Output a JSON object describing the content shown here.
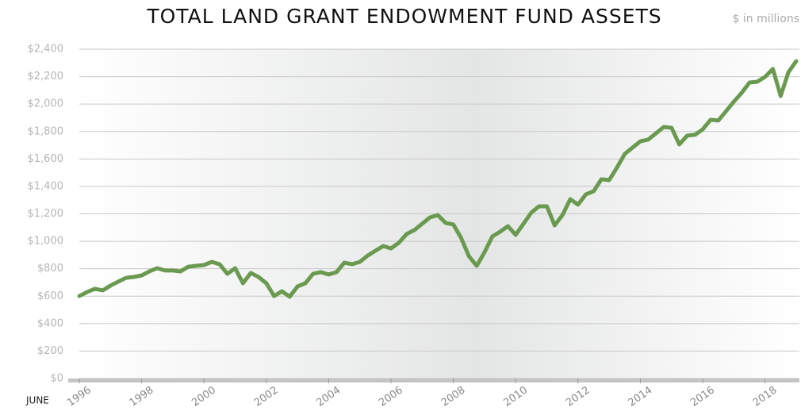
{
  "chart_data": {
    "type": "line",
    "title": "TOTAL LAND GRANT ENDOWMENT FUND ASSETS",
    "subtitle": "$ in millions",
    "x_note": "JUNE",
    "x": [
      1996,
      1996.25,
      1996.5,
      1996.75,
      1997,
      1997.25,
      1997.5,
      1997.75,
      1998,
      1998.25,
      1998.5,
      1998.75,
      1999,
      1999.25,
      1999.5,
      1999.75,
      2000,
      2000.25,
      2000.5,
      2000.75,
      2001,
      2001.25,
      2001.5,
      2001.75,
      2002,
      2002.25,
      2002.5,
      2002.75,
      2003,
      2003.25,
      2003.5,
      2003.75,
      2004,
      2004.25,
      2004.5,
      2004.75,
      2005,
      2005.25,
      2005.5,
      2005.75,
      2006,
      2006.25,
      2006.5,
      2006.75,
      2007,
      2007.25,
      2007.5,
      2007.75,
      2008,
      2008.25,
      2008.5,
      2008.75,
      2009,
      2009.25,
      2009.5,
      2009.75,
      2010,
      2010.25,
      2010.5,
      2010.75,
      2011,
      2011.25,
      2011.5,
      2011.75,
      2012,
      2012.25,
      2012.5,
      2012.75,
      2013,
      2013.25,
      2013.5,
      2013.75,
      2014,
      2014.25,
      2014.5,
      2014.75,
      2015,
      2015.25,
      2015.5,
      2015.75,
      2016,
      2016.25,
      2016.5,
      2016.75,
      2017,
      2017.25,
      2017.5,
      2017.75,
      2018,
      2018.25,
      2018.5,
      2018.75,
      2019
    ],
    "series": [
      {
        "name": "Fund assets",
        "color": "#6a9a50",
        "values": [
          601,
          630,
          654,
          642,
          677,
          706,
          734,
          740,
          751,
          781,
          804,
          787,
          787,
          781,
          815,
          821,
          827,
          850,
          833,
          763,
          804,
          694,
          769,
          740,
          694,
          601,
          636,
          596,
          671,
          694,
          763,
          775,
          758,
          775,
          844,
          833,
          850,
          896,
          931,
          966,
          948,
          989,
          1053,
          1082,
          1128,
          1174,
          1191,
          1134,
          1122,
          1024,
          891,
          821,
          920,
          1035,
          1070,
          1110,
          1047,
          1128,
          1209,
          1255,
          1255,
          1116,
          1191,
          1307,
          1267,
          1342,
          1365,
          1452,
          1446,
          1538,
          1637,
          1683,
          1729,
          1741,
          1787,
          1833,
          1827,
          1706,
          1770,
          1776,
          1816,
          1885,
          1880,
          1949,
          2018,
          2082,
          2157,
          2163,
          2198,
          2256,
          2059,
          2233,
          2313
        ]
      }
    ],
    "xlim": [
      1996,
      2019
    ],
    "xticks": [
      1996,
      1998,
      2000,
      2002,
      2004,
      2006,
      2008,
      2010,
      2012,
      2014,
      2016,
      2018
    ],
    "ylim": [
      0,
      2400
    ],
    "yticks": [
      {
        "value": 0,
        "label": "$0"
      },
      {
        "value": 200,
        "label": "$200"
      },
      {
        "value": 400,
        "label": "$400"
      },
      {
        "value": 600,
        "label": "$600"
      },
      {
        "value": 800,
        "label": "$800"
      },
      {
        "value": 1000,
        "label": "$1,000"
      },
      {
        "value": 1200,
        "label": "$1,200"
      },
      {
        "value": 1400,
        "label": "$1,400"
      },
      {
        "value": 1600,
        "label": "$1,600"
      },
      {
        "value": 1800,
        "label": "$1,800"
      },
      {
        "value": 2000,
        "label": "$2,000"
      },
      {
        "value": 2200,
        "label": "$2,200"
      },
      {
        "value": 2400,
        "label": "$2,400"
      }
    ],
    "grid": true
  }
}
